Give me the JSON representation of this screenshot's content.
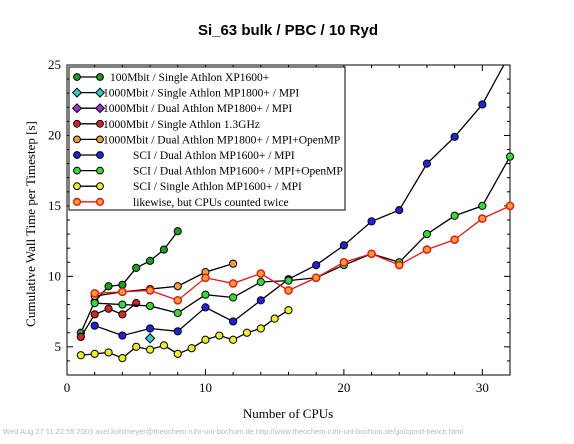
{
  "chart_data": {
    "type": "line",
    "title": "Si_63 bulk / PBC / 10 Ryd",
    "xlabel": "Number of CPUs",
    "ylabel": "Cumulative Wall Time per Timestep [s]",
    "xlim": [
      0,
      32
    ],
    "ylim": [
      3,
      25
    ],
    "xticks": [
      0,
      10,
      20,
      30
    ],
    "yticks": [
      5,
      10,
      15,
      20,
      25
    ],
    "grid": false,
    "legend_position": "top-left",
    "series": [
      {
        "name": "100Mbit / Single Athlon XP1600+",
        "color": "#1f9e1f",
        "line": "#000000",
        "x": [
          1,
          2,
          3,
          4,
          5,
          6,
          7,
          8
        ],
        "y": [
          6.0,
          8.2,
          9.3,
          9.4,
          10.6,
          11.1,
          11.9,
          13.2
        ]
      },
      {
        "name": "1000Mbit / Single Athlon MP1800+ / MPI",
        "color": "#33cccc",
        "line": "#000000",
        "marker": "diamond",
        "x": [
          6
        ],
        "y": [
          5.6
        ]
      },
      {
        "name": "1000Mbit / Dual Athlon MP1800+ / MPI",
        "color": "#9932cc",
        "line": "#000000",
        "marker": "diamond",
        "x": [],
        "y": []
      },
      {
        "name": "1000Mbit / Single Athlon 1.3GHz",
        "color": "#dd2222",
        "line": "#000000",
        "x": [
          1,
          2,
          3,
          4,
          5
        ],
        "y": [
          5.7,
          7.3,
          7.7,
          7.3,
          8.1
        ]
      },
      {
        "name": "1000Mbit / Dual Athlon MP1800+ / MPI+OpenMP",
        "color": "#f0a030",
        "line": "#000000",
        "x": [
          2,
          4,
          6,
          8,
          10,
          12
        ],
        "y": [
          8.6,
          8.9,
          9.1,
          9.3,
          10.3,
          10.9
        ]
      },
      {
        "name": "SCI / Dual Athlon MP1600+ / MPI",
        "color": "#2222dd",
        "line": "#000000",
        "x": [
          2,
          4,
          6,
          8,
          10,
          12,
          14,
          16,
          18,
          20,
          22,
          24,
          26,
          28,
          30,
          32
        ],
        "y": [
          6.5,
          5.8,
          6.3,
          6.1,
          7.8,
          6.8,
          8.3,
          9.8,
          10.8,
          12.2,
          13.9,
          14.7,
          18.0,
          19.9,
          22.2,
          25.8
        ]
      },
      {
        "name": "SCI / Dual Athlon MP1600+ / MPI+OpenMP",
        "color": "#33dd33",
        "line": "#000000",
        "x": [
          2,
          4,
          6,
          8,
          10,
          12,
          14,
          16,
          18,
          20,
          22,
          24,
          26,
          28,
          30,
          32
        ],
        "y": [
          8.1,
          8.0,
          7.9,
          7.4,
          8.7,
          8.5,
          9.6,
          9.7,
          9.9,
          10.8,
          11.6,
          11.0,
          13.0,
          14.3,
          15.0,
          18.5
        ]
      },
      {
        "name": "SCI / Single Athlon MP1600+ / MPI",
        "color": "#eeee22",
        "line": "#000000",
        "x": [
          1,
          2,
          3,
          4,
          5,
          6,
          7,
          8,
          9,
          10,
          11,
          12,
          13,
          14,
          15,
          16
        ],
        "y": [
          4.4,
          4.5,
          4.6,
          4.2,
          5.0,
          4.8,
          5.1,
          4.5,
          4.9,
          5.5,
          5.8,
          5.5,
          6.0,
          6.3,
          7.0,
          7.6
        ]
      },
      {
        "name": "likewise, but CPUs counted twice",
        "color": "#f0a030",
        "line": "#ee1111",
        "x": [
          2,
          4,
          6,
          8,
          10,
          12,
          14,
          16,
          18,
          20,
          22,
          24,
          26,
          28,
          30,
          32
        ],
        "y": [
          8.8,
          8.9,
          9.0,
          8.3,
          9.9,
          9.5,
          10.2,
          9.0,
          9.9,
          11.0,
          11.6,
          10.8,
          11.9,
          12.6,
          14.1,
          15.0
        ]
      }
    ]
  },
  "footer": "Wed Aug 27 11:22:55 2003  axel.kohlmeyer@theochem.ruhr-uni-bochum.de  http://www.theochem.ruhr-uni-bochum.de/go/cpmd-bench.html"
}
